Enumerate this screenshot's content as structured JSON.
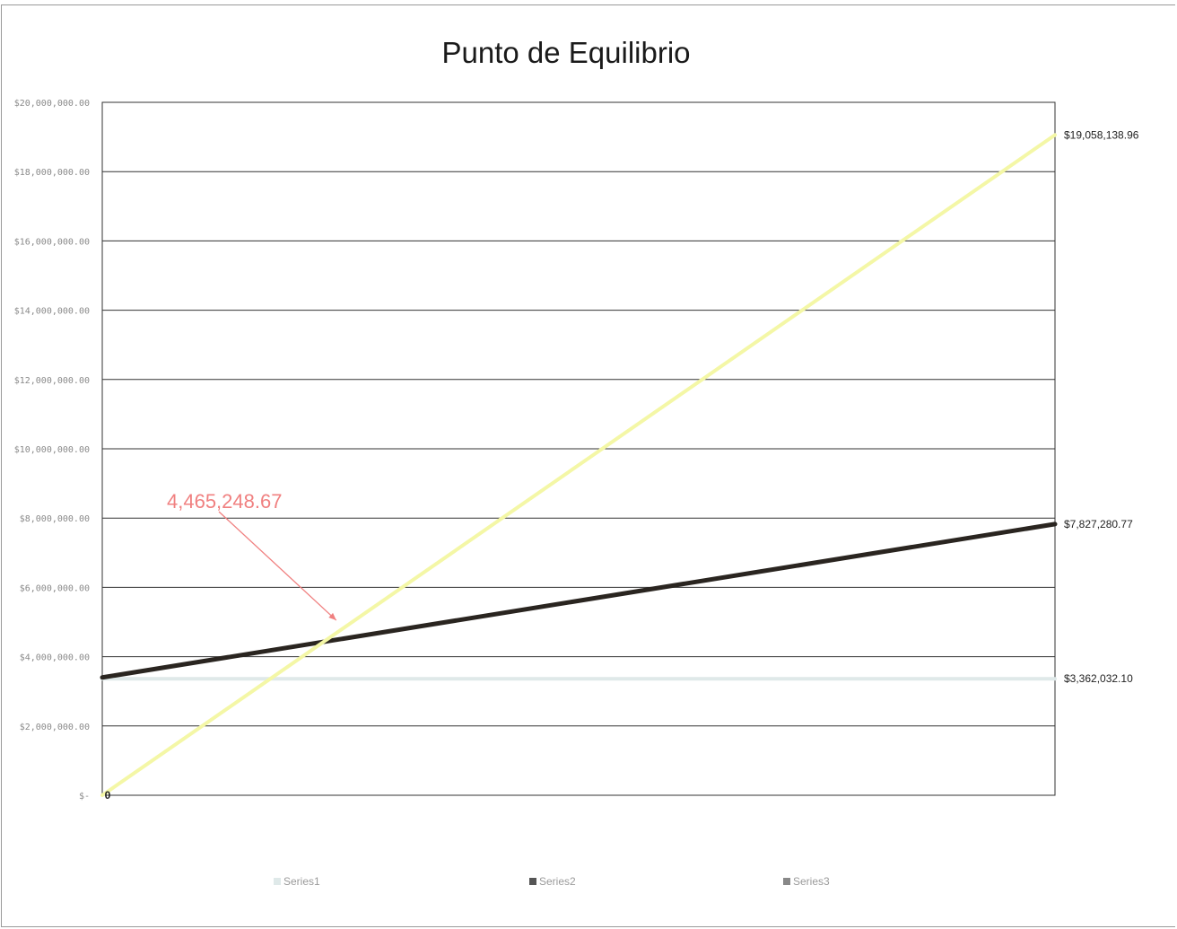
{
  "chart_data": {
    "type": "line",
    "title": "Punto de Equilibrio",
    "xlabel": "",
    "ylabel": "",
    "ylim": [
      0,
      20000000
    ],
    "yticks": [
      "$20,000,000.00",
      "$18,000,000.00",
      "$16,000,000.00",
      "$14,000,000.00",
      "$12,000,000.00",
      "$10,000,000.00",
      "$8,000,000.00",
      "$6,000,000.00",
      "$4,000,000.00",
      "$2,000,000.00",
      "$-"
    ],
    "ytick_values": [
      20000000,
      18000000,
      16000000,
      14000000,
      12000000,
      10000000,
      8000000,
      6000000,
      4000000,
      2000000,
      0
    ],
    "x": [
      0,
      1
    ],
    "grid": true,
    "legend_position": "bottom",
    "series": [
      {
        "name": "Series1",
        "values": [
          3362032.1,
          3362032.1
        ],
        "color": "#dfe9e9"
      },
      {
        "name": "Series2",
        "values": [
          3400000,
          7827280.77
        ],
        "color": "#2a2520"
      },
      {
        "name": "Series3",
        "values": [
          0,
          19058138.96
        ],
        "color": "#f4f7a6"
      }
    ],
    "end_labels": [
      "$3,362,032.10",
      "$7,827,280.77",
      "$19,058,138.96"
    ],
    "start_label": "0",
    "annotation": {
      "text": "4,465,248.67",
      "value": 4465248.67,
      "color": "#f08080"
    }
  }
}
